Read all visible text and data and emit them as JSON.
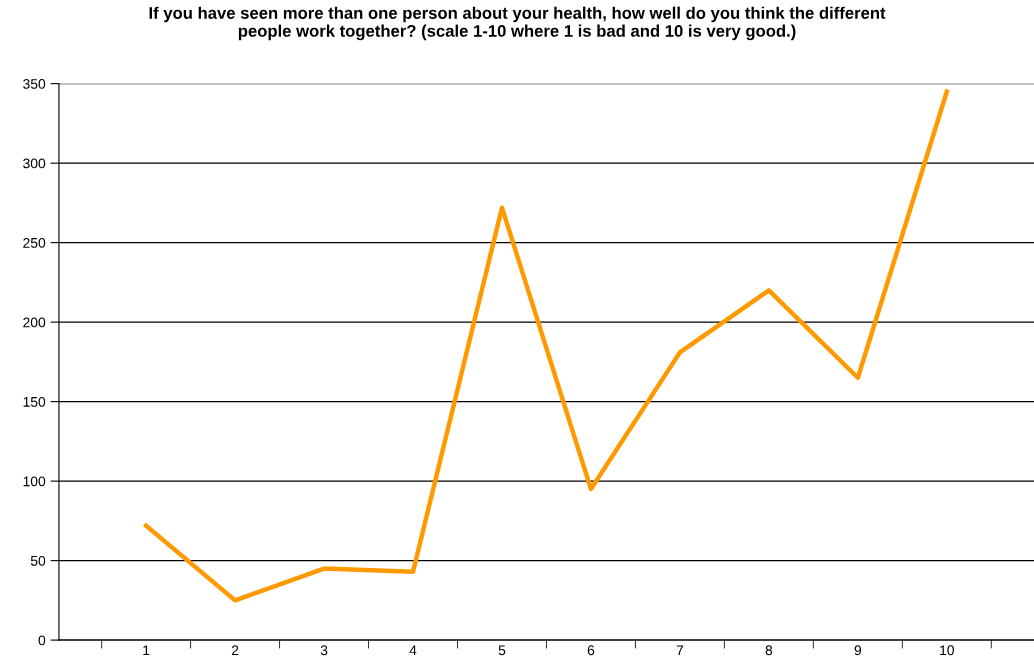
{
  "chart_data": {
    "type": "line",
    "title": "If you have seen more than one person about your health, how well do you think the different\npeople work together? (scale 1-10 where 1 is bad and 10 is very good.)",
    "categories": [
      "1",
      "2",
      "3",
      "4",
      "5",
      "6",
      "7",
      "8",
      "9",
      "10"
    ],
    "series": [
      {
        "color": "#ff9900",
        "values": [
          72,
          25,
          45,
          43,
          272,
          95,
          181,
          220,
          165,
          345
        ]
      }
    ],
    "ylim": [
      0,
      350
    ],
    "yticks": [
      0,
      50,
      100,
      150,
      200,
      250,
      300,
      350
    ],
    "grid": "y",
    "marker": "none",
    "line_style": "solid"
  }
}
